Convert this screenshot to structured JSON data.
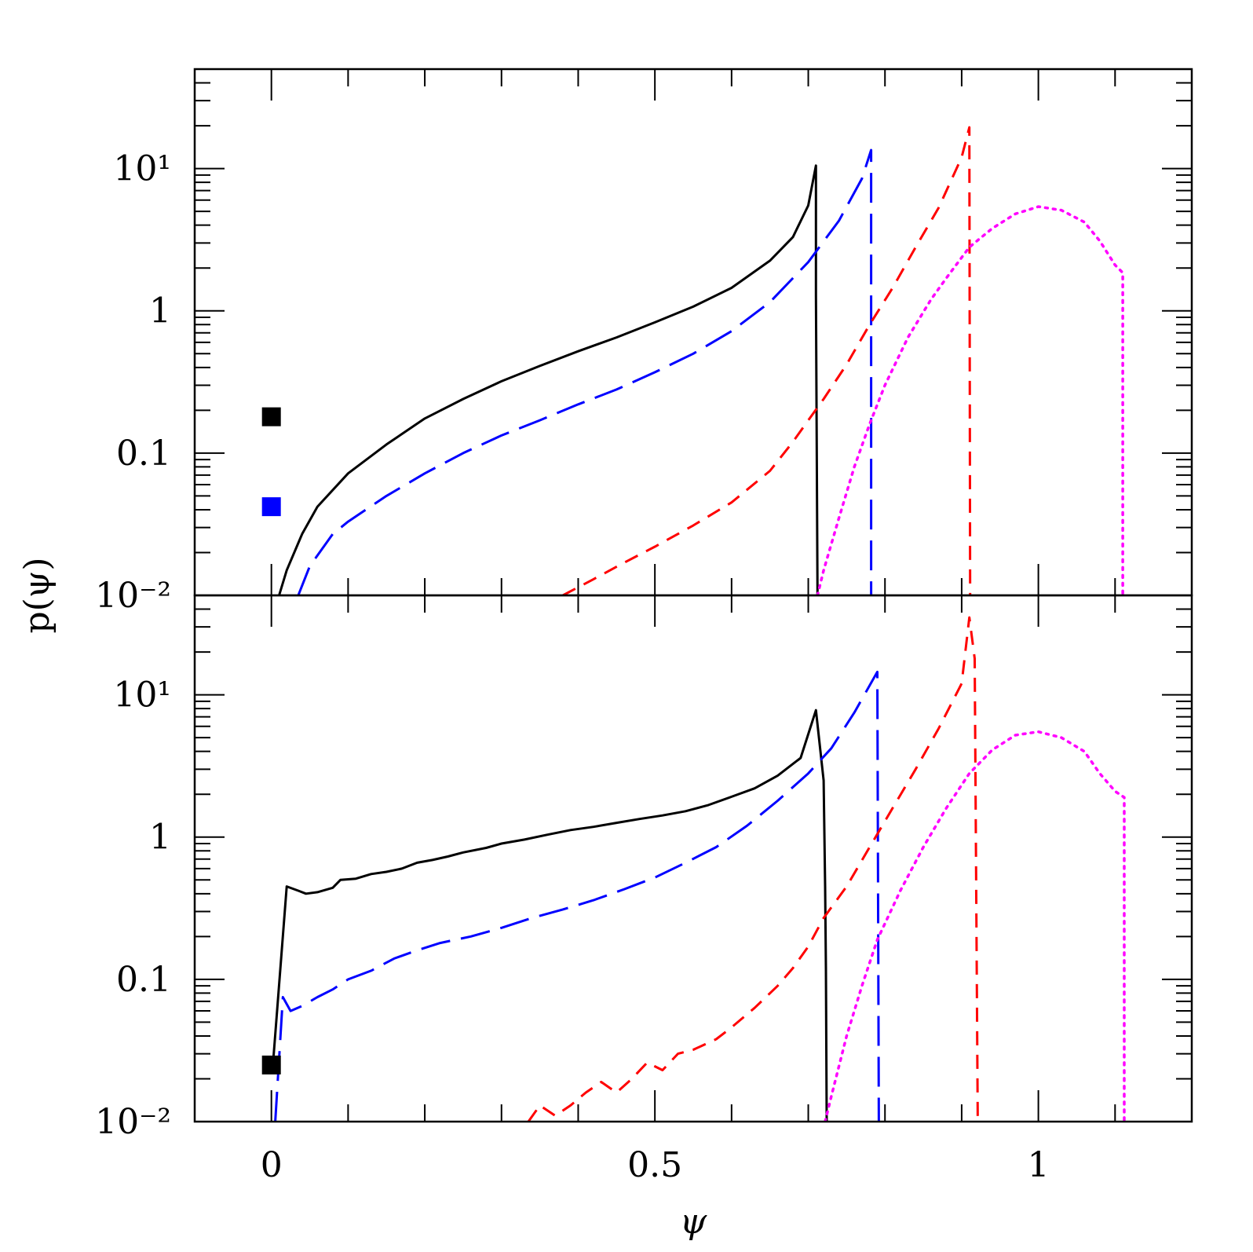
{
  "chart_data": [
    {
      "panel": "top",
      "type": "line",
      "xlim": [
        -0.1,
        1.2
      ],
      "ylim": [
        0.01,
        50
      ],
      "yscale": "log",
      "ylabel": "p(ψ)",
      "xlabel": "",
      "ytick_labels": {
        "0.01": "10⁻²",
        "0.1": "0.1",
        "1": "1",
        "10": "10¹"
      },
      "xticks": [
        0,
        0.5,
        1
      ],
      "series": [
        {
          "name": "black-solid",
          "color": "#000000",
          "style": "solid",
          "points": [
            [
              0.01,
              0.01
            ],
            [
              0.02,
              0.015
            ],
            [
              0.04,
              0.027
            ],
            [
              0.06,
              0.042
            ],
            [
              0.1,
              0.072
            ],
            [
              0.15,
              0.115
            ],
            [
              0.2,
              0.175
            ],
            [
              0.25,
              0.24
            ],
            [
              0.3,
              0.32
            ],
            [
              0.35,
              0.41
            ],
            [
              0.4,
              0.52
            ],
            [
              0.45,
              0.65
            ],
            [
              0.5,
              0.83
            ],
            [
              0.55,
              1.07
            ],
            [
              0.6,
              1.45
            ],
            [
              0.65,
              2.25
            ],
            [
              0.68,
              3.3
            ],
            [
              0.7,
              5.5
            ],
            [
              0.71,
              10.5
            ],
            [
              0.71,
              1.3
            ],
            [
              0.712,
              0.01
            ]
          ]
        },
        {
          "name": "blue-longdash",
          "color": "#0000ff",
          "style": "longdash",
          "points": [
            [
              0.035,
              0.01
            ],
            [
              0.05,
              0.016
            ],
            [
              0.08,
              0.027
            ],
            [
              0.1,
              0.033
            ],
            [
              0.15,
              0.05
            ],
            [
              0.2,
              0.072
            ],
            [
              0.25,
              0.1
            ],
            [
              0.3,
              0.133
            ],
            [
              0.35,
              0.17
            ],
            [
              0.4,
              0.22
            ],
            [
              0.45,
              0.28
            ],
            [
              0.5,
              0.37
            ],
            [
              0.55,
              0.5
            ],
            [
              0.6,
              0.72
            ],
            [
              0.65,
              1.15
            ],
            [
              0.7,
              2.2
            ],
            [
              0.74,
              4.3
            ],
            [
              0.77,
              8.5
            ],
            [
              0.782,
              13.5
            ],
            [
              0.782,
              10
            ],
            [
              0.782,
              0.01
            ]
          ]
        },
        {
          "name": "red-shortdash",
          "color": "#ff0000",
          "style": "shortdash",
          "points": [
            [
              0.38,
              0.01
            ],
            [
              0.42,
              0.013
            ],
            [
              0.46,
              0.017
            ],
            [
              0.5,
              0.022
            ],
            [
              0.55,
              0.031
            ],
            [
              0.6,
              0.045
            ],
            [
              0.65,
              0.075
            ],
            [
              0.68,
              0.12
            ],
            [
              0.7,
              0.17
            ],
            [
              0.72,
              0.24
            ],
            [
              0.75,
              0.42
            ],
            [
              0.78,
              0.8
            ],
            [
              0.81,
              1.45
            ],
            [
              0.84,
              2.8
            ],
            [
              0.87,
              5.3
            ],
            [
              0.9,
              12
            ],
            [
              0.91,
              19.5
            ],
            [
              0.911,
              0.01
            ]
          ]
        },
        {
          "name": "magenta-dotted",
          "color": "#ff00ff",
          "style": "dotted",
          "points": [
            [
              0.712,
              0.01
            ],
            [
              0.72,
              0.015
            ],
            [
              0.74,
              0.035
            ],
            [
              0.76,
              0.08
            ],
            [
              0.78,
              0.16
            ],
            [
              0.8,
              0.3
            ],
            [
              0.83,
              0.65
            ],
            [
              0.86,
              1.2
            ],
            [
              0.88,
              1.7
            ],
            [
              0.91,
              2.8
            ],
            [
              0.94,
              3.8
            ],
            [
              0.97,
              4.8
            ],
            [
              1.0,
              5.4
            ],
            [
              1.03,
              5.1
            ],
            [
              1.06,
              4.2
            ],
            [
              1.08,
              3.1
            ],
            [
              1.1,
              2.1
            ],
            [
              1.11,
              1.85
            ],
            [
              1.11,
              0.01
            ]
          ]
        }
      ],
      "markers": [
        {
          "name": "black-square",
          "color": "#000000",
          "x": 0.0,
          "y": 0.18
        },
        {
          "name": "blue-square",
          "color": "#0000ff",
          "x": 0.0,
          "y": 0.042
        }
      ]
    },
    {
      "panel": "bottom",
      "type": "line",
      "xlim": [
        -0.1,
        1.2
      ],
      "ylim": [
        0.01,
        50
      ],
      "yscale": "log",
      "ylabel": "",
      "xlabel": "ψ",
      "ytick_labels": {
        "0.01": "10⁻²",
        "0.1": "0.1",
        "1": "1",
        "10": "10¹"
      },
      "xtick_labels": {
        "0": "0",
        "0.5": "0.5",
        "1": "1"
      },
      "series": [
        {
          "name": "black-solid",
          "color": "#000000",
          "style": "solid",
          "points": [
            [
              0.002,
              0.025
            ],
            [
              0.02,
              0.45
            ],
            [
              0.035,
              0.42
            ],
            [
              0.045,
              0.4
            ],
            [
              0.06,
              0.41
            ],
            [
              0.08,
              0.44
            ],
            [
              0.09,
              0.5
            ],
            [
              0.11,
              0.51
            ],
            [
              0.13,
              0.55
            ],
            [
              0.15,
              0.57
            ],
            [
              0.17,
              0.6
            ],
            [
              0.19,
              0.66
            ],
            [
              0.21,
              0.69
            ],
            [
              0.23,
              0.73
            ],
            [
              0.25,
              0.78
            ],
            [
              0.28,
              0.84
            ],
            [
              0.3,
              0.9
            ],
            [
              0.33,
              0.96
            ],
            [
              0.36,
              1.04
            ],
            [
              0.39,
              1.12
            ],
            [
              0.42,
              1.18
            ],
            [
              0.45,
              1.26
            ],
            [
              0.48,
              1.34
            ],
            [
              0.51,
              1.42
            ],
            [
              0.54,
              1.52
            ],
            [
              0.57,
              1.68
            ],
            [
              0.6,
              1.92
            ],
            [
              0.63,
              2.2
            ],
            [
              0.66,
              2.7
            ],
            [
              0.69,
              3.6
            ],
            [
              0.71,
              7.8
            ],
            [
              0.72,
              2.5
            ],
            [
              0.722,
              0.45
            ],
            [
              0.723,
              0.12
            ],
            [
              0.724,
              0.01
            ]
          ]
        },
        {
          "name": "blue-longdash",
          "color": "#0000ff",
          "style": "longdash",
          "points": [
            [
              0.005,
              0.01
            ],
            [
              0.015,
              0.075
            ],
            [
              0.025,
              0.06
            ],
            [
              0.04,
              0.065
            ],
            [
              0.06,
              0.075
            ],
            [
              0.08,
              0.085
            ],
            [
              0.1,
              0.1
            ],
            [
              0.13,
              0.115
            ],
            [
              0.16,
              0.14
            ],
            [
              0.19,
              0.16
            ],
            [
              0.22,
              0.18
            ],
            [
              0.26,
              0.2
            ],
            [
              0.3,
              0.23
            ],
            [
              0.34,
              0.27
            ],
            [
              0.38,
              0.31
            ],
            [
              0.42,
              0.36
            ],
            [
              0.46,
              0.43
            ],
            [
              0.5,
              0.52
            ],
            [
              0.54,
              0.66
            ],
            [
              0.58,
              0.85
            ],
            [
              0.62,
              1.2
            ],
            [
              0.66,
              1.8
            ],
            [
              0.7,
              2.8
            ],
            [
              0.73,
              4.2
            ],
            [
              0.76,
              7.5
            ],
            [
              0.79,
              14.5
            ],
            [
              0.792,
              0.01
            ]
          ]
        },
        {
          "name": "red-shortdash",
          "color": "#ff0000",
          "style": "shortdash",
          "points": [
            [
              0.335,
              0.01
            ],
            [
              0.35,
              0.013
            ],
            [
              0.37,
              0.011
            ],
            [
              0.39,
              0.013
            ],
            [
              0.41,
              0.016
            ],
            [
              0.43,
              0.019
            ],
            [
              0.45,
              0.016
            ],
            [
              0.47,
              0.02
            ],
            [
              0.49,
              0.026
            ],
            [
              0.51,
              0.023
            ],
            [
              0.53,
              0.03
            ],
            [
              0.55,
              0.032
            ],
            [
              0.58,
              0.038
            ],
            [
              0.6,
              0.046
            ],
            [
              0.63,
              0.063
            ],
            [
              0.66,
              0.09
            ],
            [
              0.68,
              0.12
            ],
            [
              0.7,
              0.17
            ],
            [
              0.72,
              0.27
            ],
            [
              0.75,
              0.45
            ],
            [
              0.78,
              0.85
            ],
            [
              0.81,
              1.6
            ],
            [
              0.84,
              3
            ],
            [
              0.87,
              5.8
            ],
            [
              0.9,
              12
            ],
            [
              0.91,
              35
            ],
            [
              0.917,
              18
            ],
            [
              0.921,
              0.01
            ]
          ]
        },
        {
          "name": "magenta-dotted",
          "color": "#ff00ff",
          "style": "dotted",
          "points": [
            [
              0.722,
              0.01
            ],
            [
              0.73,
              0.015
            ],
            [
              0.75,
              0.04
            ],
            [
              0.77,
              0.09
            ],
            [
              0.79,
              0.19
            ],
            [
              0.82,
              0.42
            ],
            [
              0.85,
              0.85
            ],
            [
              0.88,
              1.6
            ],
            [
              0.91,
              2.8
            ],
            [
              0.94,
              4.1
            ],
            [
              0.97,
              5.2
            ],
            [
              1.0,
              5.5
            ],
            [
              1.03,
              5.0
            ],
            [
              1.06,
              4.0
            ],
            [
              1.08,
              2.8
            ],
            [
              1.1,
              2.1
            ],
            [
              1.112,
              1.9
            ],
            [
              1.112,
              0.01
            ]
          ]
        }
      ],
      "markers": [
        {
          "name": "black-square",
          "color": "#000000",
          "x": 0.0,
          "y": 0.025
        }
      ]
    }
  ]
}
